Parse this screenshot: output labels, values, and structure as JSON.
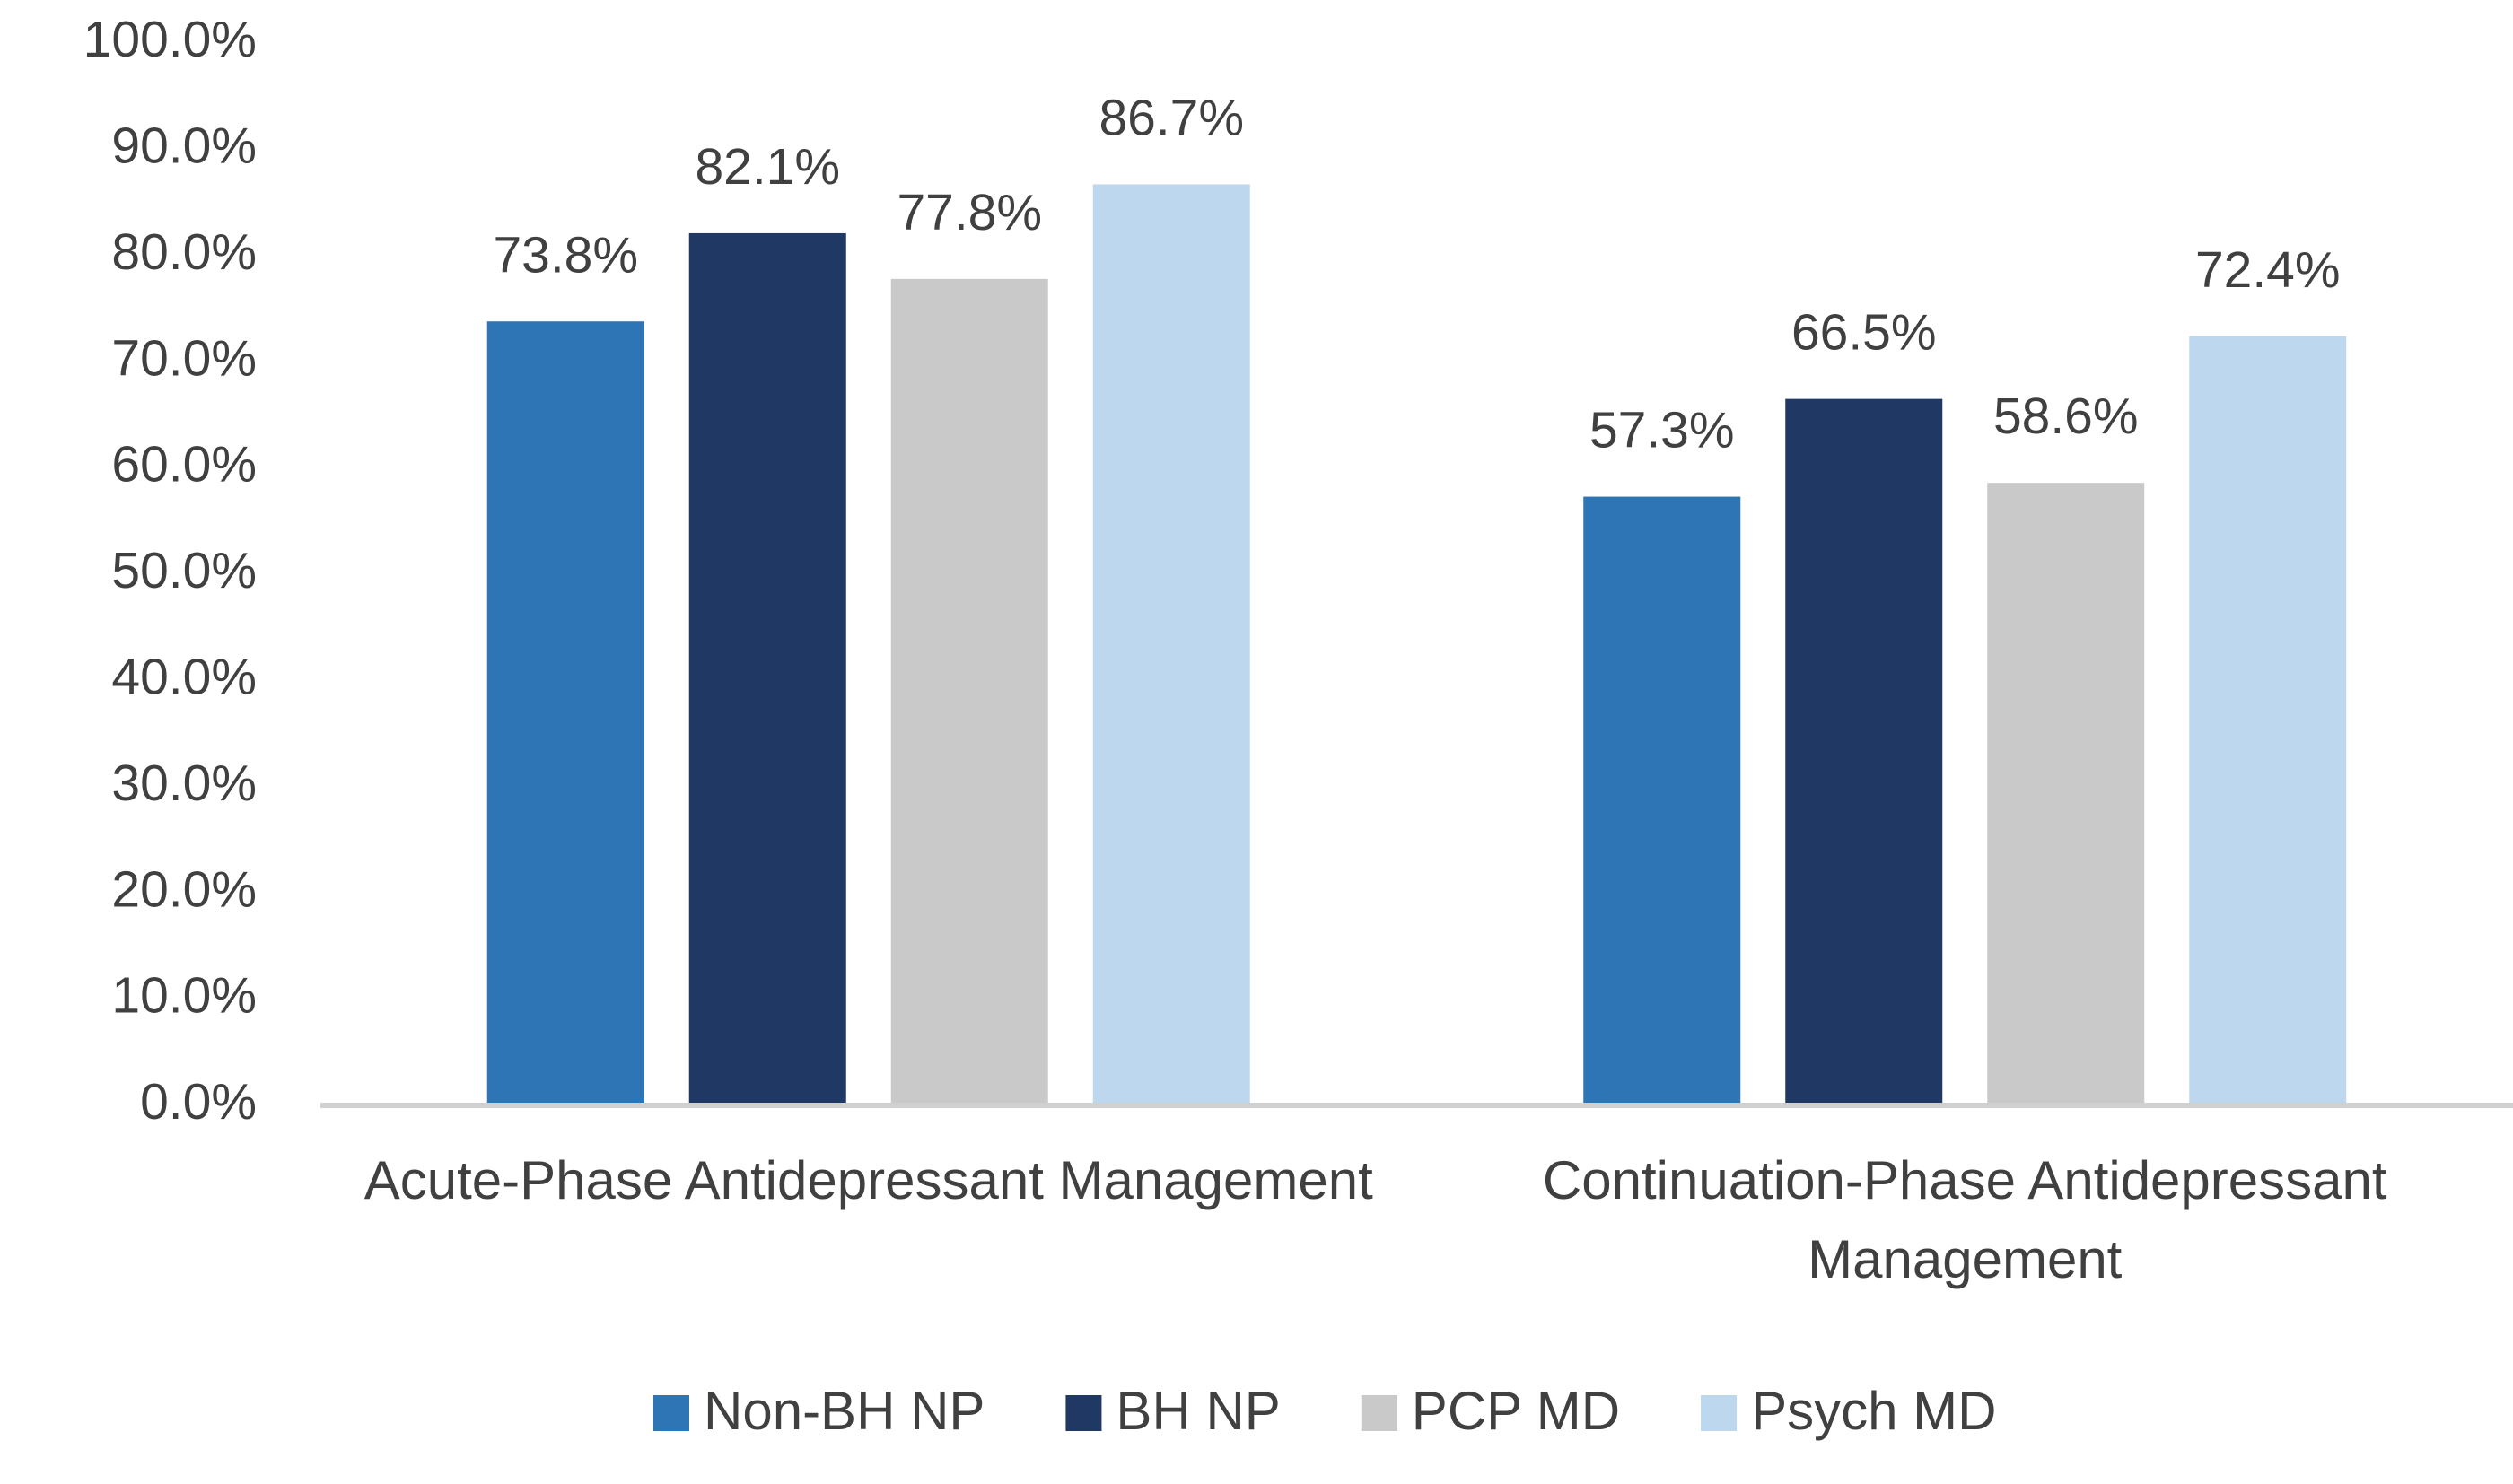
{
  "chart_data": {
    "type": "bar",
    "categories": [
      "Acute-Phase Antidepressant Management",
      "Continuation-Phase Antidepressant Management"
    ],
    "series": [
      {
        "name": "Non-BH NP",
        "color": "#2e75b6",
        "values": [
          73.8,
          57.3
        ],
        "value_labels": [
          "73.8%",
          "57.3%"
        ]
      },
      {
        "name": "BH NP",
        "color": "#1f3864",
        "values": [
          82.1,
          66.5
        ],
        "value_labels": [
          "82.1%",
          "66.5%"
        ]
      },
      {
        "name": "PCP MD",
        "color": "#c9c9c9",
        "values": [
          77.8,
          58.6
        ],
        "value_labels": [
          "77.8%",
          "58.6%"
        ]
      },
      {
        "name": "Psych MD",
        "color": "#bdd7ee",
        "values": [
          86.7,
          72.4
        ],
        "value_labels": [
          "86.7%",
          "72.4%"
        ]
      }
    ],
    "ylim": [
      0,
      100
    ],
    "yticks": [
      {
        "value": 0,
        "label": "0.0%"
      },
      {
        "value": 10,
        "label": "10.0%"
      },
      {
        "value": 20,
        "label": "20.0%"
      },
      {
        "value": 30,
        "label": "30.0%"
      },
      {
        "value": 40,
        "label": "40.0%"
      },
      {
        "value": 50,
        "label": "50.0%"
      },
      {
        "value": 60,
        "label": "60.0%"
      },
      {
        "value": 70,
        "label": "70.0%"
      },
      {
        "value": 80,
        "label": "80.0%"
      },
      {
        "value": 90,
        "label": "90.0%"
      },
      {
        "value": 100,
        "label": "100.0%"
      }
    ],
    "grid": false,
    "legend": "bottom"
  }
}
